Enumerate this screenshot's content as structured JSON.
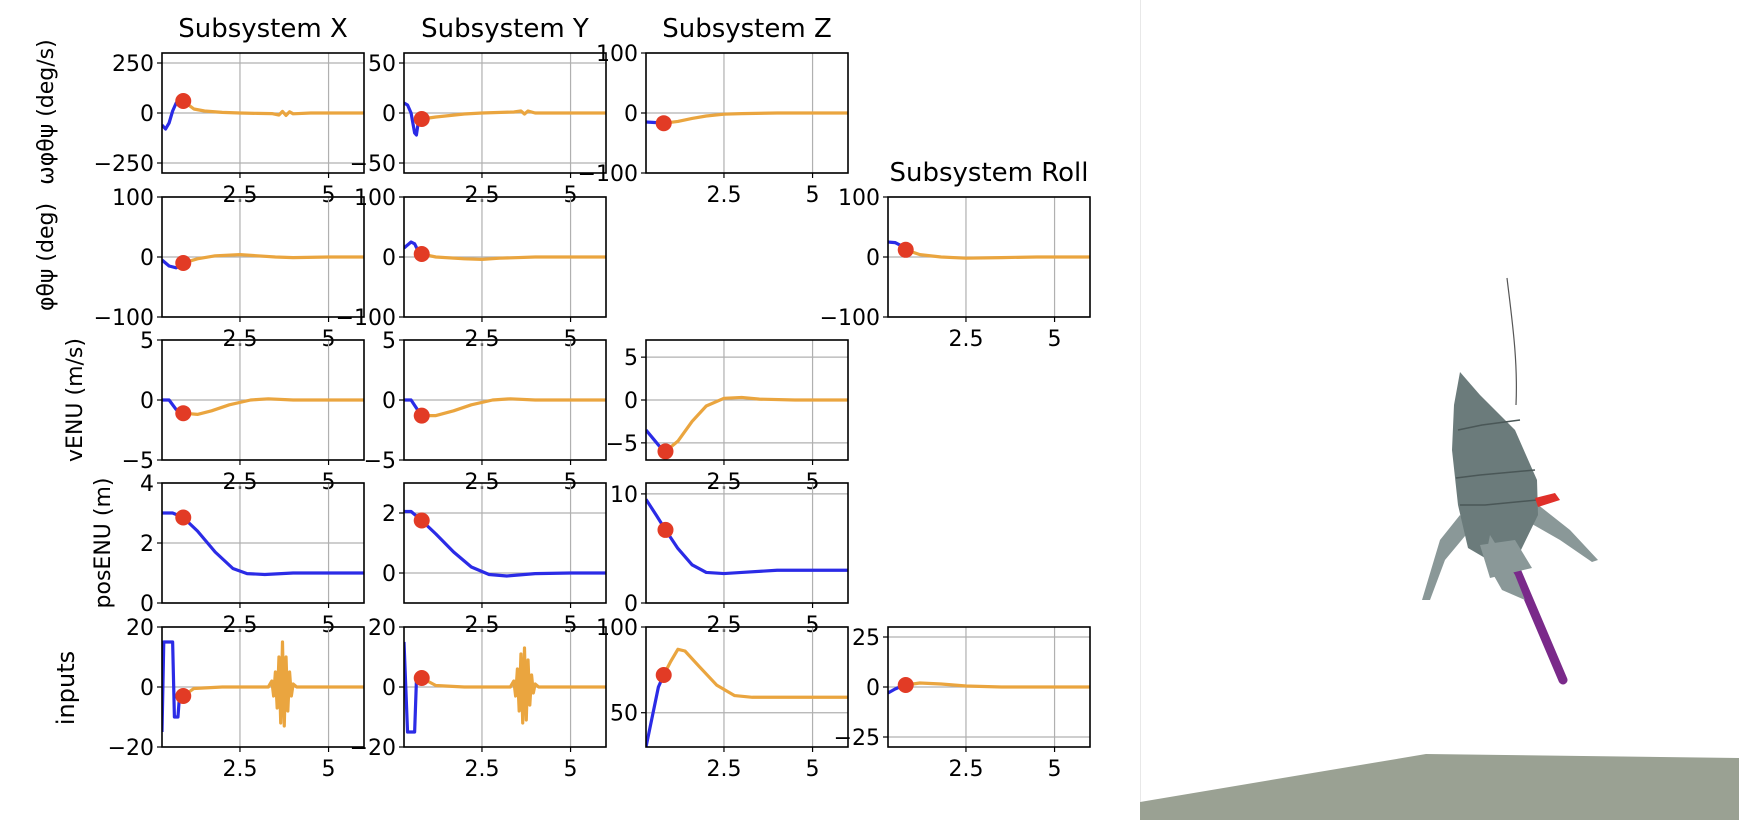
{
  "chart_data": {
    "type": "line",
    "col_titles": [
      "Subsystem X",
      "Subsystem Y",
      "Subsystem Z",
      "Subsystem Roll"
    ],
    "row_labels": [
      "ωφθψ (deg/s)",
      "φθψ (deg)",
      "vENU (m/s)",
      "posENU (m)",
      "inputs"
    ],
    "xlim": [
      0.3,
      6.0
    ],
    "xticks": [
      2.5,
      5.0
    ],
    "grid": true,
    "colors": {
      "blue": "#2b2be6",
      "orange": "#eaa53f",
      "marker": "#e23b25",
      "grid": "#b0b0b0"
    },
    "panels": [
      {
        "id": "omega-x",
        "row": 0,
        "col": 0,
        "ylim": [
          -300,
          300
        ],
        "yticks": [
          250,
          0,
          -250
        ],
        "xticks_shown": false,
        "blue": [
          [
            0.3,
            -60
          ],
          [
            0.4,
            -80
          ],
          [
            0.5,
            -50
          ],
          [
            0.6,
            10
          ],
          [
            0.7,
            50
          ],
          [
            0.8,
            70
          ],
          [
            0.9,
            62
          ]
        ],
        "orange": [
          [
            0.9,
            60
          ],
          [
            1.2,
            20
          ],
          [
            1.5,
            10
          ],
          [
            2.0,
            3
          ],
          [
            2.5,
            0
          ],
          [
            3.0,
            -2
          ],
          [
            3.4,
            -3
          ],
          [
            3.6,
            -10
          ],
          [
            3.7,
            8
          ],
          [
            3.8,
            -12
          ],
          [
            3.9,
            6
          ],
          [
            4.0,
            -4
          ],
          [
            4.5,
            0
          ],
          [
            5.0,
            0
          ],
          [
            6.0,
            0
          ]
        ],
        "marker": [
          0.9,
          60
        ]
      },
      {
        "id": "omega-y",
        "row": 0,
        "col": 1,
        "ylim": [
          -60,
          60
        ],
        "yticks": [
          50,
          0,
          -50
        ],
        "xticks_shown": false,
        "blue": [
          [
            0.3,
            10
          ],
          [
            0.4,
            8
          ],
          [
            0.5,
            0
          ],
          [
            0.6,
            -20
          ],
          [
            0.65,
            -22
          ],
          [
            0.7,
            -10
          ],
          [
            0.8,
            -6
          ]
        ],
        "orange": [
          [
            0.8,
            -6
          ],
          [
            1.2,
            -4
          ],
          [
            2.0,
            -1
          ],
          [
            2.5,
            0
          ],
          [
            3.4,
            1
          ],
          [
            3.6,
            2
          ],
          [
            3.7,
            -1
          ],
          [
            3.8,
            2
          ],
          [
            4.0,
            0
          ],
          [
            5.0,
            0
          ],
          [
            6.0,
            0
          ]
        ],
        "marker": [
          0.8,
          -6
        ]
      },
      {
        "id": "omega-z",
        "row": 0,
        "col": 2,
        "ylim": [
          -100,
          100
        ],
        "yticks": [
          100,
          0,
          -100
        ],
        "xticks_shown": true,
        "blue": [
          [
            0.3,
            -15
          ],
          [
            0.6,
            -16
          ],
          [
            0.8,
            -17
          ]
        ],
        "orange": [
          [
            0.8,
            -17
          ],
          [
            1.2,
            -14
          ],
          [
            1.6,
            -9
          ],
          [
            2.0,
            -5
          ],
          [
            2.5,
            -2
          ],
          [
            3.0,
            -1
          ],
          [
            4.0,
            0
          ],
          [
            5.0,
            0
          ],
          [
            6.0,
            0
          ]
        ],
        "marker": [
          0.8,
          -17
        ]
      },
      {
        "id": "angle-x",
        "row": 1,
        "col": 0,
        "ylim": [
          -100,
          100
        ],
        "yticks": [
          100,
          0,
          -100
        ],
        "xticks_shown": false,
        "blue": [
          [
            0.3,
            -5
          ],
          [
            0.5,
            -15
          ],
          [
            0.7,
            -18
          ],
          [
            0.9,
            -10
          ]
        ],
        "orange": [
          [
            0.9,
            -10
          ],
          [
            1.3,
            -3
          ],
          [
            1.8,
            2
          ],
          [
            2.5,
            4
          ],
          [
            3.0,
            2
          ],
          [
            3.5,
            0
          ],
          [
            4.0,
            -1
          ],
          [
            5.0,
            0
          ],
          [
            6.0,
            0
          ]
        ],
        "marker": [
          0.9,
          -10
        ]
      },
      {
        "id": "angle-y",
        "row": 1,
        "col": 1,
        "ylim": [
          -100,
          100
        ],
        "yticks": [
          100,
          0,
          -100
        ],
        "xticks_shown": false,
        "blue": [
          [
            0.3,
            15
          ],
          [
            0.5,
            25
          ],
          [
            0.6,
            22
          ],
          [
            0.7,
            10
          ],
          [
            0.8,
            5
          ]
        ],
        "orange": [
          [
            0.8,
            5
          ],
          [
            1.2,
            0
          ],
          [
            2.0,
            -3
          ],
          [
            2.5,
            -4
          ],
          [
            3.0,
            -2
          ],
          [
            4.0,
            0
          ],
          [
            5.0,
            0
          ],
          [
            6.0,
            0
          ]
        ],
        "marker": [
          0.8,
          5
        ]
      },
      {
        "id": "angle-roll",
        "row": 1,
        "col": 3,
        "ylim": [
          -100,
          100
        ],
        "yticks": [
          100,
          0,
          -100
        ],
        "xticks_shown": true,
        "blue": [
          [
            0.3,
            25
          ],
          [
            0.5,
            24
          ],
          [
            0.7,
            18
          ],
          [
            0.8,
            12
          ]
        ],
        "orange": [
          [
            0.8,
            12
          ],
          [
            1.2,
            4
          ],
          [
            1.8,
            0
          ],
          [
            2.5,
            -2
          ],
          [
            3.5,
            -1
          ],
          [
            4.5,
            0
          ],
          [
            6.0,
            0
          ]
        ],
        "marker": [
          0.8,
          12
        ]
      },
      {
        "id": "vel-x",
        "row": 2,
        "col": 0,
        "ylim": [
          -5,
          5
        ],
        "yticks": [
          5,
          0,
          -5
        ],
        "xticks_shown": false,
        "blue": [
          [
            0.3,
            0
          ],
          [
            0.5,
            0
          ],
          [
            0.7,
            -0.8
          ],
          [
            0.9,
            -1.1
          ]
        ],
        "orange": [
          [
            0.9,
            -1.1
          ],
          [
            1.3,
            -1.2
          ],
          [
            1.7,
            -0.9
          ],
          [
            2.2,
            -0.4
          ],
          [
            2.8,
            0
          ],
          [
            3.3,
            0.1
          ],
          [
            4.0,
            0
          ],
          [
            6.0,
            0
          ]
        ],
        "marker": [
          0.9,
          -1.1
        ]
      },
      {
        "id": "vel-y",
        "row": 2,
        "col": 1,
        "ylim": [
          -5,
          5
        ],
        "yticks": [
          5,
          0,
          -5
        ],
        "xticks_shown": false,
        "blue": [
          [
            0.3,
            0
          ],
          [
            0.5,
            0
          ],
          [
            0.7,
            -0.9
          ],
          [
            0.8,
            -1.3
          ]
        ],
        "orange": [
          [
            0.8,
            -1.3
          ],
          [
            1.2,
            -1.3
          ],
          [
            1.7,
            -0.9
          ],
          [
            2.2,
            -0.4
          ],
          [
            2.8,
            0
          ],
          [
            3.3,
            0.1
          ],
          [
            4.0,
            0
          ],
          [
            6.0,
            0
          ]
        ],
        "marker": [
          0.8,
          -1.3
        ]
      },
      {
        "id": "vel-z",
        "row": 2,
        "col": 2,
        "ylim": [
          -7,
          7
        ],
        "yticks": [
          5,
          0,
          -5
        ],
        "xticks_shown": false,
        "blue": [
          [
            0.3,
            -3.5
          ],
          [
            0.5,
            -4.5
          ],
          [
            0.7,
            -5.5
          ],
          [
            0.85,
            -6
          ]
        ],
        "orange": [
          [
            0.85,
            -6
          ],
          [
            1.2,
            -4.8
          ],
          [
            1.6,
            -2.5
          ],
          [
            2.0,
            -0.7
          ],
          [
            2.5,
            0.2
          ],
          [
            3.0,
            0.3
          ],
          [
            3.5,
            0.1
          ],
          [
            4.5,
            0
          ],
          [
            6.0,
            0
          ]
        ],
        "marker": [
          0.85,
          -6
        ]
      },
      {
        "id": "pos-x",
        "row": 3,
        "col": 0,
        "ylim": [
          0,
          4
        ],
        "yticks": [
          4,
          2,
          0
        ],
        "xticks_shown": true,
        "blue": [
          [
            0.3,
            3
          ],
          [
            0.6,
            3
          ],
          [
            0.9,
            2.85
          ],
          [
            1.3,
            2.4
          ],
          [
            1.8,
            1.7
          ],
          [
            2.3,
            1.15
          ],
          [
            2.7,
            0.98
          ],
          [
            3.2,
            0.95
          ],
          [
            4.0,
            1
          ],
          [
            5.0,
            1
          ],
          [
            6.0,
            1
          ]
        ],
        "orange": [],
        "marker": [
          0.9,
          2.85
        ]
      },
      {
        "id": "pos-y",
        "row": 3,
        "col": 1,
        "ylim": [
          -1,
          3
        ],
        "yticks": [
          2,
          0
        ],
        "xticks_shown": true,
        "blue": [
          [
            0.3,
            2.05
          ],
          [
            0.5,
            2.05
          ],
          [
            0.8,
            1.75
          ],
          [
            1.2,
            1.3
          ],
          [
            1.7,
            0.7
          ],
          [
            2.2,
            0.2
          ],
          [
            2.7,
            -0.05
          ],
          [
            3.2,
            -0.1
          ],
          [
            4.0,
            -0.02
          ],
          [
            5.0,
            0
          ],
          [
            6.0,
            0
          ]
        ],
        "orange": [],
        "marker": [
          0.8,
          1.75
        ]
      },
      {
        "id": "pos-z",
        "row": 3,
        "col": 2,
        "ylim": [
          0,
          11
        ],
        "yticks": [
          10,
          0
        ],
        "xticks_shown": true,
        "blue": [
          [
            0.3,
            9.5
          ],
          [
            0.6,
            8
          ],
          [
            0.85,
            6.7
          ],
          [
            1.2,
            5
          ],
          [
            1.6,
            3.5
          ],
          [
            2.0,
            2.8
          ],
          [
            2.5,
            2.7
          ],
          [
            3.0,
            2.8
          ],
          [
            4.0,
            3
          ],
          [
            5.0,
            3
          ],
          [
            6.0,
            3
          ]
        ],
        "orange": [],
        "marker": [
          0.85,
          6.7
        ]
      },
      {
        "id": "inputs-x",
        "row": 4,
        "col": 0,
        "ylim": [
          -20,
          20
        ],
        "yticks": [
          20,
          0,
          -20
        ],
        "xticks_shown": true,
        "blue": [
          [
            0.3,
            -15
          ],
          [
            0.35,
            15
          ],
          [
            0.6,
            15
          ],
          [
            0.65,
            -10
          ],
          [
            0.75,
            -10
          ],
          [
            0.8,
            -2
          ],
          [
            0.9,
            -3
          ]
        ],
        "orange": [
          [
            0.9,
            -3
          ],
          [
            1.2,
            -0.5
          ],
          [
            2.0,
            0
          ],
          [
            3.3,
            0
          ],
          [
            3.4,
            2
          ],
          [
            3.45,
            -3
          ],
          [
            3.5,
            5
          ],
          [
            3.55,
            -7
          ],
          [
            3.6,
            10
          ],
          [
            3.65,
            -12
          ],
          [
            3.7,
            15
          ],
          [
            3.75,
            -13
          ],
          [
            3.8,
            10
          ],
          [
            3.85,
            -8
          ],
          [
            3.9,
            5
          ],
          [
            3.95,
            -3
          ],
          [
            4.0,
            1
          ],
          [
            4.1,
            0
          ],
          [
            5.0,
            0
          ],
          [
            6.0,
            0
          ]
        ],
        "marker": [
          0.9,
          -3
        ]
      },
      {
        "id": "inputs-y",
        "row": 4,
        "col": 1,
        "ylim": [
          -20,
          20
        ],
        "yticks": [
          20,
          0,
          -20
        ],
        "xticks_shown": true,
        "blue": [
          [
            0.3,
            15
          ],
          [
            0.4,
            -15
          ],
          [
            0.6,
            -15
          ],
          [
            0.65,
            2
          ],
          [
            0.8,
            3
          ]
        ],
        "orange": [
          [
            0.8,
            3
          ],
          [
            1.2,
            0.5
          ],
          [
            2.0,
            0
          ],
          [
            3.3,
            0
          ],
          [
            3.4,
            2
          ],
          [
            3.45,
            -3
          ],
          [
            3.5,
            6
          ],
          [
            3.55,
            -8
          ],
          [
            3.6,
            11
          ],
          [
            3.65,
            -12
          ],
          [
            3.7,
            13
          ],
          [
            3.75,
            -11
          ],
          [
            3.8,
            9
          ],
          [
            3.85,
            -6
          ],
          [
            3.9,
            4
          ],
          [
            3.95,
            -2
          ],
          [
            4.0,
            1
          ],
          [
            4.1,
            0
          ],
          [
            5.0,
            0
          ],
          [
            6.0,
            0
          ]
        ],
        "marker": [
          0.8,
          3
        ]
      },
      {
        "id": "inputs-z",
        "row": 4,
        "col": 2,
        "ylim": [
          30,
          100
        ],
        "yticks": [
          100,
          50
        ],
        "xticks_shown": true,
        "blue": [
          [
            0.3,
            30
          ],
          [
            0.5,
            50
          ],
          [
            0.65,
            65
          ],
          [
            0.8,
            72
          ]
        ],
        "orange": [
          [
            0.8,
            72
          ],
          [
            1.0,
            80
          ],
          [
            1.2,
            87
          ],
          [
            1.4,
            86
          ],
          [
            1.8,
            77
          ],
          [
            2.3,
            66
          ],
          [
            2.8,
            60
          ],
          [
            3.3,
            59
          ],
          [
            4.0,
            59
          ],
          [
            5.0,
            59
          ],
          [
            6.0,
            59
          ]
        ],
        "marker": [
          0.8,
          72
        ]
      },
      {
        "id": "inputs-roll",
        "row": 4,
        "col": 3,
        "ylim": [
          -30,
          30
        ],
        "yticks": [
          25,
          0,
          -25
        ],
        "xticks_shown": true,
        "blue": [
          [
            0.3,
            -3
          ],
          [
            0.5,
            -1
          ],
          [
            0.7,
            0.5
          ],
          [
            0.8,
            1
          ]
        ],
        "orange": [
          [
            0.8,
            1
          ],
          [
            1.2,
            2
          ],
          [
            1.8,
            1.5
          ],
          [
            2.5,
            0.5
          ],
          [
            3.5,
            0
          ],
          [
            6.0,
            0
          ]
        ],
        "marker": [
          0.8,
          1
        ]
      }
    ]
  },
  "scene": {
    "rocket_body_color": "#6b7b7b",
    "rocket_shade_color": "#8a9898",
    "exhaust_color": "#7a2a8a",
    "fin_flag_color": "#e0302a",
    "ground_color": "#9aa193",
    "trail_color": "#555555"
  }
}
